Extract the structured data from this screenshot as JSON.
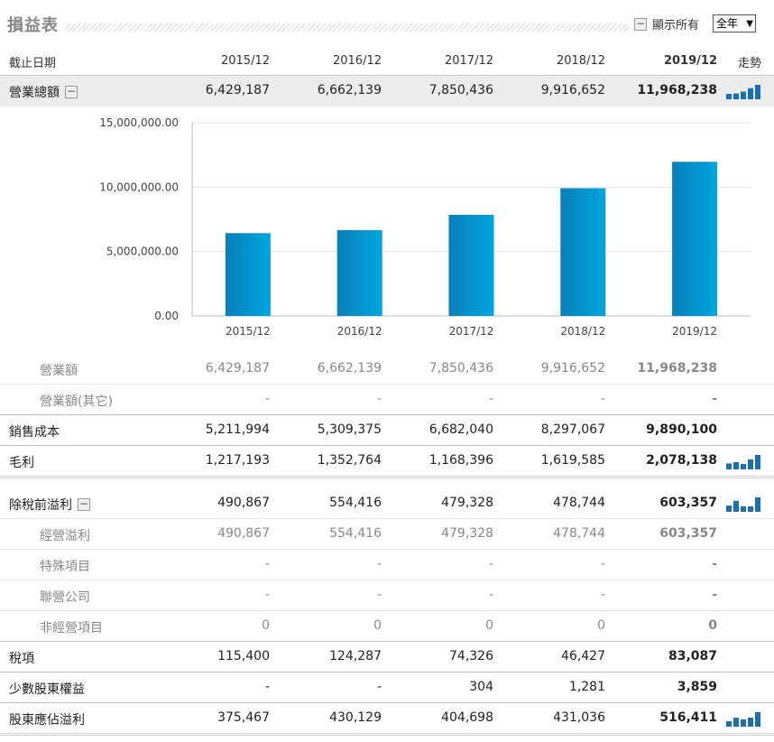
{
  "header": {
    "title": "損益表",
    "show_all_label": "顯示所有",
    "toggle_symbol": "−",
    "period_selected": "全年",
    "period_arrow": "▼"
  },
  "table": {
    "date_label": "截止日期",
    "trend_label": "走勢",
    "periods": [
      "2015/12",
      "2016/12",
      "2017/12",
      "2018/12",
      "2019/12"
    ],
    "rows": [
      {
        "key": "revenue_total",
        "label": "營業總額",
        "values": [
          "6,429,187",
          "6,662,139",
          "7,850,436",
          "9,916,652",
          "11,968,238"
        ]
      },
      {
        "key": "operating_revenue",
        "label": "營業額",
        "values": [
          "6,429,187",
          "6,662,139",
          "7,850,436",
          "9,916,652",
          "11,968,238"
        ]
      },
      {
        "key": "other_revenue",
        "label": "營業額(其它)",
        "values": [
          "-",
          "-",
          "-",
          "-",
          "-"
        ]
      },
      {
        "key": "cost_of_sales",
        "label": "銷售成本",
        "values": [
          "5,211,994",
          "5,309,375",
          "6,682,040",
          "8,297,067",
          "9,890,100"
        ]
      },
      {
        "key": "gross_profit",
        "label": "毛利",
        "values": [
          "1,217,193",
          "1,352,764",
          "1,168,396",
          "1,619,585",
          "2,078,138"
        ]
      },
      {
        "key": "pretax_profit",
        "label": "除稅前溢利",
        "values": [
          "490,867",
          "554,416",
          "479,328",
          "478,744",
          "603,357"
        ]
      },
      {
        "key": "operating_profit",
        "label": "經營溢利",
        "values": [
          "490,867",
          "554,416",
          "479,328",
          "478,744",
          "603,357"
        ]
      },
      {
        "key": "special_items",
        "label": "特殊項目",
        "values": [
          "-",
          "-",
          "-",
          "-",
          "-"
        ]
      },
      {
        "key": "associates",
        "label": "聯營公司",
        "values": [
          "-",
          "-",
          "-",
          "-",
          "-"
        ]
      },
      {
        "key": "non_operating",
        "label": "非經營項目",
        "values": [
          "0",
          "0",
          "0",
          "0",
          "0"
        ]
      },
      {
        "key": "tax",
        "label": "稅項",
        "values": [
          "115,400",
          "124,287",
          "74,326",
          "46,427",
          "83,087"
        ]
      },
      {
        "key": "minority",
        "label": "少數股東權益",
        "values": [
          "-",
          "-",
          "304",
          "1,281",
          "3,859"
        ]
      },
      {
        "key": "net_profit",
        "label": "股東應佔溢利",
        "values": [
          "375,467",
          "430,129",
          "404,698",
          "431,036",
          "516,411"
        ]
      }
    ]
  },
  "chart_data": {
    "type": "bar",
    "categories": [
      "2015/12",
      "2016/12",
      "2017/12",
      "2018/12",
      "2019/12"
    ],
    "values": [
      6429187,
      6662139,
      7850436,
      9916652,
      11968238
    ],
    "ylim": [
      0,
      15000000
    ],
    "yticks": [
      0,
      5000000,
      10000000,
      15000000
    ],
    "ytick_labels": [
      "0.00",
      "5,000,000.00",
      "10,000,000.00",
      "15,000,000.00"
    ],
    "grid": true,
    "colors": {
      "bar_top": "#00a6e0",
      "bar_bottom": "#0a7fb8"
    }
  },
  "trend_colors": {
    "bar": "#1a6fae"
  }
}
